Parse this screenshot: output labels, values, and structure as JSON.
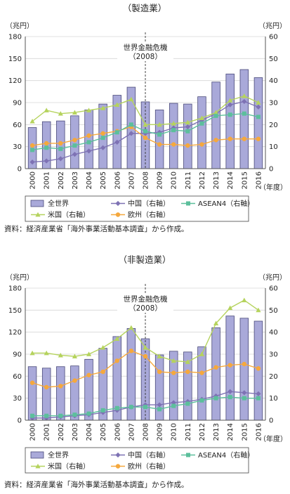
{
  "charts": [
    {
      "type": "bar+line",
      "title": "（製造業）",
      "left_unit": "（兆円）",
      "right_unit": "（兆円）",
      "x_unit": "（年度）",
      "left_ticks": [
        0,
        30,
        60,
        90,
        120,
        150,
        180
      ],
      "right_ticks": [
        0,
        10,
        20,
        30,
        40,
        50,
        60
      ],
      "left_ylim": [
        0,
        180
      ],
      "right_ylim": [
        0,
        60
      ],
      "categories": [
        "2000",
        "2001",
        "2002",
        "2003",
        "2004",
        "2005",
        "2006",
        "2007",
        "2008",
        "2009",
        "2010",
        "2011",
        "2012",
        "2013",
        "2014",
        "2015",
        "2016"
      ],
      "bars": {
        "name": "全世界",
        "axis": "left",
        "color": "#a9a9d9",
        "values": [
          56,
          64,
          65,
          72,
          80,
          88,
          100,
          111,
          91,
          80,
          89,
          88,
          98,
          118,
          129,
          135,
          124
        ]
      },
      "lines": [
        {
          "name": "中国（右軸）",
          "axis": "right",
          "color": "#7e72b4",
          "marker": "diamond",
          "values": [
            3,
            3.5,
            4.5,
            6.5,
            8,
            9.5,
            12,
            16,
            16,
            16.5,
            18.5,
            19,
            22,
            25,
            29,
            30.5,
            28
          ]
        },
        {
          "name": "米国（右軸）",
          "axis": "right",
          "color": "#b5d35d",
          "marker": "triangle",
          "values": [
            21.5,
            26.5,
            25,
            25.5,
            26.5,
            27.5,
            29,
            31.5,
            20,
            20,
            20.5,
            21,
            23,
            25.5,
            31,
            33,
            30
          ]
        },
        {
          "name": "欧州（右軸）",
          "axis": "right",
          "color": "#f5a83d",
          "marker": "circle",
          "values": [
            10.5,
            11.5,
            11.5,
            13,
            15,
            16,
            17,
            19,
            14,
            11,
            11,
            10.5,
            11,
            13,
            13.5,
            13.5,
            13.5
          ]
        },
        {
          "name": "ASEAN4（右軸）",
          "axis": "right",
          "color": "#5cbf9c",
          "marker": "square",
          "values": [
            8.5,
            9.5,
            9,
            10.5,
            12,
            14,
            16.5,
            20,
            17,
            15.5,
            17.5,
            17,
            20.5,
            24,
            24.5,
            25,
            23.5
          ]
        }
      ],
      "annotation": [
        "世界金融危機",
        "（2008）"
      ],
      "annotation_category": "2008",
      "legend": [
        "全世界",
        "中国（右軸）",
        "ASEAN4（右軸）",
        "米国（右軸）",
        "欧州（右軸）"
      ],
      "source": "資料：経済産業省「海外事業活動基本調査」から作成。"
    },
    {
      "type": "bar+line",
      "title": "（非製造業）",
      "left_unit": "（兆円）",
      "right_unit": "（兆円）",
      "x_unit": "（年度）",
      "left_ticks": [
        0,
        30,
        60,
        90,
        120,
        150,
        180
      ],
      "right_ticks": [
        0,
        10,
        20,
        30,
        40,
        50,
        60
      ],
      "left_ylim": [
        0,
        180
      ],
      "right_ylim": [
        0,
        60
      ],
      "categories": [
        "2000",
        "2001",
        "2002",
        "2003",
        "2004",
        "2005",
        "2006",
        "2007",
        "2008",
        "2009",
        "2010",
        "2011",
        "2012",
        "2013",
        "2014",
        "2015",
        "2016"
      ],
      "bars": {
        "name": "全世界",
        "axis": "left",
        "color": "#a9a9d9",
        "values": [
          73,
          71,
          73,
          74,
          83,
          98,
          114,
          125,
          111,
          89,
          94,
          93,
          100,
          126,
          142,
          139,
          135
        ]
      },
      "lines": [
        {
          "name": "中国（右軸）",
          "axis": "right",
          "color": "#7e72b4",
          "marker": "diamond",
          "values": [
            1,
            1,
            1.5,
            2,
            2.5,
            3.5,
            4.5,
            6,
            7,
            7,
            8,
            8.5,
            9.5,
            11,
            13,
            12.5,
            12
          ]
        },
        {
          "name": "米国（右軸）",
          "axis": "right",
          "color": "#b5d35d",
          "marker": "triangle",
          "values": [
            30.5,
            30.5,
            29.5,
            29,
            30,
            33,
            37,
            42,
            33,
            29,
            27,
            26.5,
            30,
            44,
            51,
            54.5,
            50
          ]
        },
        {
          "name": "欧州（右軸）",
          "axis": "right",
          "color": "#f5a83d",
          "marker": "circle",
          "values": [
            17,
            15,
            15.5,
            18,
            20.5,
            22,
            27,
            31.5,
            29,
            22,
            21.5,
            22,
            21.5,
            24,
            25,
            25.5,
            23.5
          ]
        },
        {
          "name": "ASEAN4（右軸）",
          "axis": "right",
          "color": "#5cbf9c",
          "marker": "square",
          "values": [
            2,
            2,
            2,
            2.5,
            3,
            4.5,
            5.5,
            6,
            6,
            5,
            6.5,
            7.5,
            9,
            10,
            10.5,
            10,
            10
          ]
        }
      ],
      "annotation": [
        "世界金融危機",
        "（2008）"
      ],
      "annotation_category": "2008",
      "legend": [
        "全世界",
        "中国（右軸）",
        "ASEAN4（右軸）",
        "米国（右軸）",
        "欧州（右軸）"
      ],
      "source": "資料：経済産業省「海外事業活動基本調査」から作成。"
    }
  ]
}
